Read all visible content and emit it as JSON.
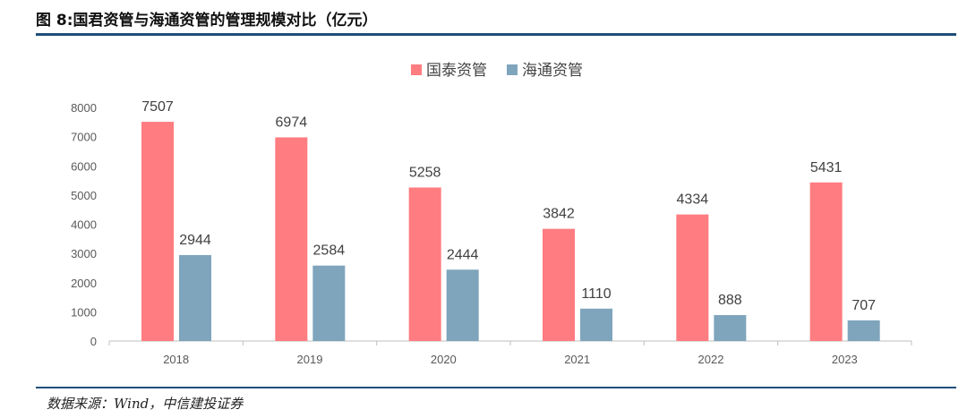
{
  "figure": {
    "title": "图 8:国君资管与海通资管的管理规模对比（亿元）",
    "source": "数据来源：Wind，中信建投证券",
    "rule_color": "#1f4e79"
  },
  "chart_data": {
    "type": "bar",
    "title": "",
    "xlabel": "",
    "ylabel": "",
    "categories": [
      "2018",
      "2019",
      "2020",
      "2021",
      "2022",
      "2023"
    ],
    "series": [
      {
        "name": "国泰资管",
        "values": [
          7507,
          6974,
          5258,
          3842,
          4334,
          5431
        ],
        "color": "#ff7c80"
      },
      {
        "name": "海通资管",
        "values": [
          2944,
          2584,
          2444,
          1110,
          888,
          707
        ],
        "color": "#7fa5bd"
      }
    ],
    "ylim": [
      0,
      8000
    ],
    "yticks": [
      "0",
      "1000",
      "2000",
      "3000",
      "4000",
      "5000",
      "6000",
      "7000",
      "8000"
    ],
    "grid": false,
    "legend": "top-center",
    "data_labels": true
  }
}
